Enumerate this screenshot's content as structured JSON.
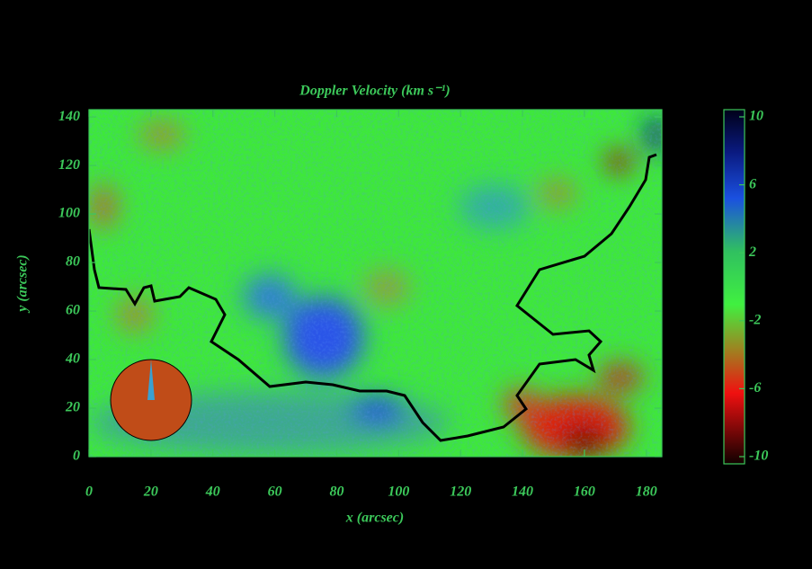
{
  "chart_data": {
    "type": "heatmap",
    "title": "Doppler Velocity (km s⁻¹)",
    "xlabel": "x (arcsec)",
    "ylabel": "y (arcsec)",
    "xlim": [
      0,
      185
    ],
    "ylim": [
      0,
      143
    ],
    "xticks": [
      0,
      20,
      40,
      60,
      80,
      100,
      120,
      140,
      160,
      180
    ],
    "yticks": [
      0,
      20,
      40,
      60,
      80,
      100,
      120,
      140
    ],
    "colorbar": {
      "clim": [
        -10,
        10
      ],
      "ticks": [
        10,
        6,
        2,
        -2,
        -6,
        -10
      ]
    }
  }
}
